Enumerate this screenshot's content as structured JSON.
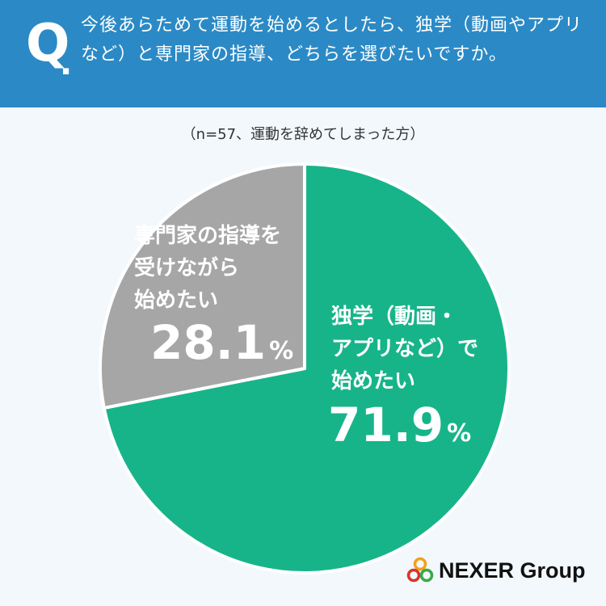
{
  "header": {
    "q_mark": "Q",
    "q_dot": ".",
    "question": "今後あらためて運動を始めるとしたら、独学（動画やアプリなど）と専門家の指導、どちらを選びたいですか。"
  },
  "subtitle": "（n=57、運動を辞めてしまった方）",
  "chart_data": {
    "type": "pie",
    "n": 57,
    "slices": [
      {
        "label": "独学（動画・アプリなど）で始めたい",
        "value": 71.9,
        "color": "#17b48a"
      },
      {
        "label": "専門家の指導を受けながら始めたい",
        "value": 28.1,
        "color": "#a6a6a6"
      }
    ],
    "slice_label_lines": [
      [
        "独学（動画・",
        "アプリなど）で",
        "始めたい"
      ],
      [
        "専門家の指導を",
        "受けながら",
        "始めたい"
      ]
    ],
    "value_texts": [
      "71.9",
      "28.1"
    ],
    "unit": "%"
  },
  "logo": {
    "text": "NEXER Group"
  }
}
